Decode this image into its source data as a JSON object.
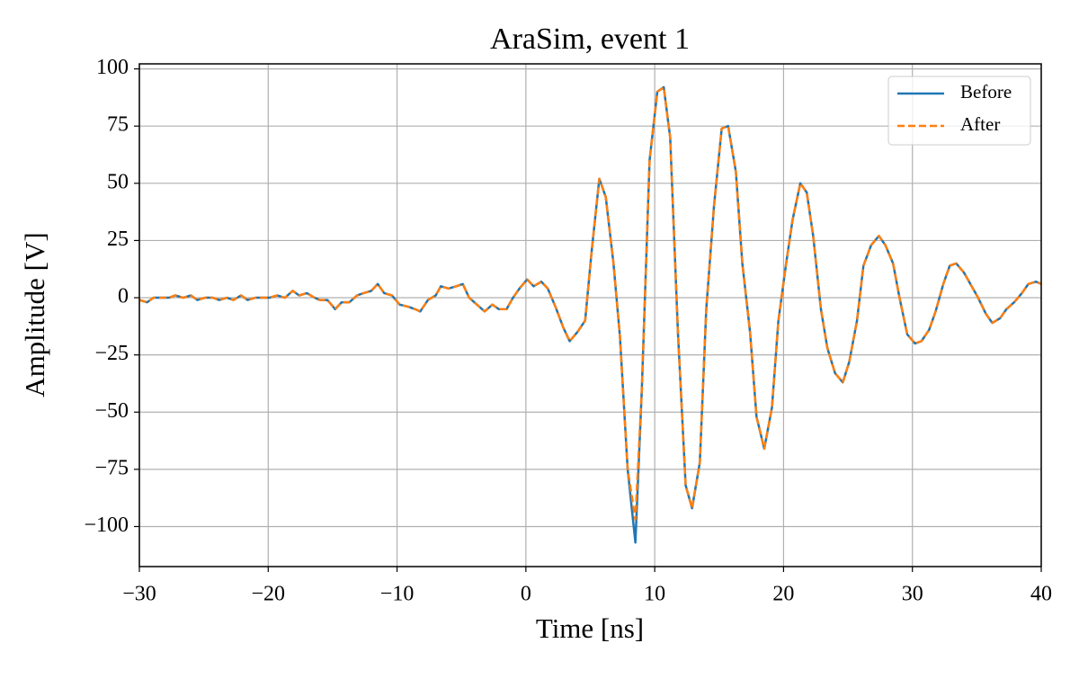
{
  "chart_data": {
    "type": "line",
    "title": "AraSim, event 1",
    "xlabel": "Time [ns]",
    "ylabel": "Amplitude [V]",
    "x": [
      -30,
      -29.4,
      -28.9,
      -28.3,
      -27.7,
      -27.2,
      -26.6,
      -26,
      -25.5,
      -24.9,
      -24.3,
      -23.8,
      -23.2,
      -22.7,
      -22.1,
      -21.6,
      -21,
      -20.5,
      -19.9,
      -19.3,
      -18.7,
      -18.1,
      -17.6,
      -17,
      -16.4,
      -16,
      -15.4,
      -14.8,
      -14.3,
      -13.7,
      -13.1,
      -12.6,
      -12,
      -11.5,
      -11,
      -10.4,
      -9.8,
      -9.1,
      -8.6,
      -8.2,
      -7.6,
      -7,
      -6.6,
      -6,
      -5.4,
      -4.9,
      -4.4,
      -3.8,
      -3.2,
      -2.6,
      -2.1,
      -1.5,
      -1,
      -0.5,
      0.1,
      0.6,
      1.2,
      1.7,
      2.3,
      2.9,
      3.4,
      4,
      4.6,
      5.1,
      5.7,
      6.2,
      6.8,
      7.3,
      7.9,
      8.5,
      9,
      9.6,
      10.2,
      10.7,
      11.2,
      11.8,
      12.4,
      12.9,
      13.5,
      14,
      14.6,
      15.2,
      15.7,
      16.3,
      16.8,
      17.4,
      17.9,
      18.5,
      19.1,
      19.6,
      20.2,
      20.7,
      21.3,
      21.8,
      22.3,
      22.9,
      23.4,
      24,
      24.6,
      25.1,
      25.7,
      26.2,
      26.8,
      27.4,
      27.9,
      28.5,
      29,
      29.6,
      30.2,
      30.7,
      31.3,
      31.8,
      32.4,
      32.9,
      33.4,
      34,
      34.5,
      35.1,
      35.7,
      36.2,
      36.8,
      37.3,
      37.9,
      38.5,
      39,
      39.6,
      40
    ],
    "series": [
      {
        "name": "Before",
        "color": "#1f77b4",
        "dash": false,
        "values": [
          -1,
          -2,
          0,
          0,
          0,
          1,
          0,
          1,
          -1,
          0,
          0,
          -1,
          0,
          -1,
          1,
          -1,
          0,
          0,
          0,
          1,
          0,
          3,
          1,
          2,
          0,
          -1,
          -1,
          -5,
          -2,
          -2,
          1,
          2,
          3,
          6,
          2,
          1,
          -3,
          -4,
          -5,
          -6,
          -1,
          1,
          5,
          4,
          5,
          6,
          0,
          -3,
          -6,
          -3,
          -5,
          -5,
          0,
          4,
          8,
          5,
          7,
          4,
          -4,
          -13,
          -19,
          -15,
          -10,
          20,
          52,
          44,
          15,
          -17,
          -75,
          -107,
          -40,
          60,
          90,
          92,
          70,
          -15,
          -82,
          -92,
          -72,
          -5,
          40,
          74,
          75,
          55,
          15,
          -15,
          -52,
          -66,
          -48,
          -10,
          15,
          34,
          50,
          46,
          27,
          -5,
          -22,
          -33,
          -37,
          -28,
          -10,
          14,
          23,
          27,
          23,
          15,
          0,
          -16,
          -20,
          -19,
          -14,
          -6,
          6,
          14,
          15,
          11,
          6,
          0,
          -7,
          -11,
          -9,
          -5,
          -2,
          2,
          6,
          7,
          6
        ]
      },
      {
        "name": "After",
        "color": "#ff7f0e",
        "dash": true,
        "values": [
          -1,
          -2,
          0,
          0,
          0,
          1,
          0,
          1,
          -1,
          0,
          0,
          -1,
          0,
          -1,
          1,
          -1,
          0,
          0,
          0,
          1,
          0,
          3,
          1,
          2,
          0,
          -1,
          -1,
          -5,
          -2,
          -2,
          1,
          2,
          3,
          6,
          2,
          1,
          -3,
          -4,
          -5,
          -6,
          -1,
          1,
          5,
          4,
          5,
          6,
          0,
          -3,
          -6,
          -3,
          -5,
          -5,
          0,
          4,
          8,
          5,
          7,
          4,
          -4,
          -13,
          -19,
          -15,
          -10,
          20,
          52,
          44,
          15,
          -17,
          -75,
          -97,
          -40,
          60,
          90,
          92,
          70,
          -15,
          -82,
          -92,
          -72,
          -5,
          40,
          74,
          75,
          55,
          15,
          -15,
          -52,
          -66,
          -48,
          -10,
          15,
          34,
          50,
          46,
          27,
          -5,
          -22,
          -33,
          -37,
          -28,
          -10,
          14,
          23,
          27,
          23,
          15,
          0,
          -16,
          -20,
          -19,
          -14,
          -6,
          6,
          14,
          15,
          11,
          6,
          0,
          -7,
          -11,
          -9,
          -5,
          -2,
          2,
          6,
          7,
          6
        ]
      }
    ],
    "xlim": [
      -30,
      40
    ],
    "ylim": [
      -117.5,
      102.2
    ],
    "xticks": [
      {
        "value": -30,
        "label": "−30"
      },
      {
        "value": -20,
        "label": "−20"
      },
      {
        "value": -10,
        "label": "−10"
      },
      0,
      10,
      20,
      30,
      40
    ],
    "yticks": [
      {
        "value": -100,
        "label": "−100"
      },
      {
        "value": -75,
        "label": "−75"
      },
      {
        "value": -50,
        "label": "−50"
      },
      {
        "value": -25,
        "label": "−25"
      },
      0,
      25,
      50,
      75,
      100
    ],
    "grid": true,
    "legend": "upper right"
  }
}
